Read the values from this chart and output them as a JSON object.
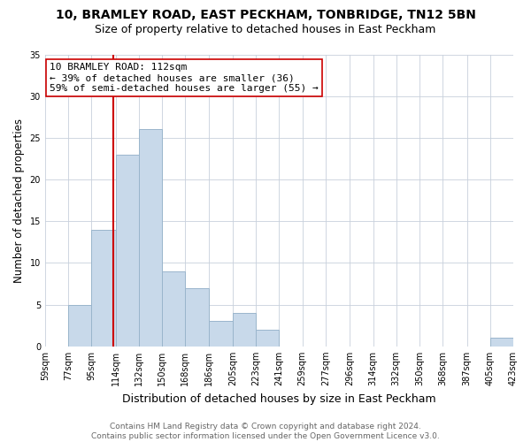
{
  "title": "10, BRAMLEY ROAD, EAST PECKHAM, TONBRIDGE, TN12 5BN",
  "subtitle": "Size of property relative to detached houses in East Peckham",
  "xlabel": "Distribution of detached houses by size in East Peckham",
  "ylabel": "Number of detached properties",
  "bins": [
    59,
    77,
    95,
    114,
    132,
    150,
    168,
    186,
    205,
    223,
    241,
    259,
    277,
    296,
    314,
    332,
    350,
    368,
    387,
    405,
    423
  ],
  "counts": [
    0,
    5,
    14,
    23,
    26,
    9,
    7,
    3,
    4,
    2,
    0,
    0,
    0,
    0,
    0,
    0,
    0,
    0,
    0,
    1,
    0
  ],
  "bar_color": "#c8d9ea",
  "bar_edge_color": "#9ab5cc",
  "vline_x": 112,
  "vline_color": "#cc0000",
  "annotation_line1": "10 BRAMLEY ROAD: 112sqm",
  "annotation_line2": "← 39% of detached houses are smaller (36)",
  "annotation_line3": "59% of semi-detached houses are larger (55) →",
  "annotation_box_color": "white",
  "annotation_box_edge_color": "#cc0000",
  "ylim": [
    0,
    35
  ],
  "yticks": [
    0,
    5,
    10,
    15,
    20,
    25,
    30,
    35
  ],
  "footer_text": "Contains HM Land Registry data © Crown copyright and database right 2024.\nContains public sector information licensed under the Open Government Licence v3.0.",
  "bg_color": "white",
  "grid_color": "#c8d0dc",
  "title_fontsize": 10,
  "subtitle_fontsize": 9,
  "xlabel_fontsize": 9,
  "ylabel_fontsize": 8.5,
  "tick_fontsize": 7,
  "annotation_fontsize": 8,
  "footer_fontsize": 6.5
}
